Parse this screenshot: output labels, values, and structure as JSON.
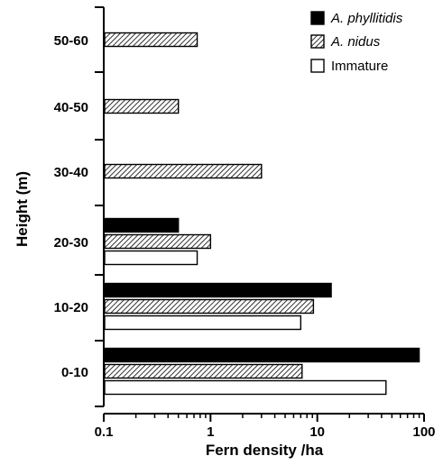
{
  "chart_data": {
    "type": "bar",
    "orientation": "horizontal",
    "title": "",
    "xlabel": "Fern density /ha",
    "ylabel": "Height (m)",
    "xscale": "log",
    "xlim": [
      0.1,
      100
    ],
    "x_tick_labels": [
      "0.1",
      "1",
      "10",
      "100"
    ],
    "categories": [
      "0-10",
      "10-20",
      "20-30",
      "30-40",
      "40-50",
      "50-60"
    ],
    "series": [
      {
        "name": "A. phyllitidis",
        "italic": true,
        "fill": "solid",
        "color": "#000000",
        "values": [
          90,
          13.5,
          0.5,
          null,
          null,
          null
        ]
      },
      {
        "name": "A. nidus",
        "italic": true,
        "fill": "hatch",
        "color": "#000000",
        "values": [
          7.2,
          9.2,
          1.0,
          3.0,
          0.5,
          0.75
        ]
      },
      {
        "name": "Immature",
        "italic": false,
        "fill": "white",
        "color": "#000000",
        "values": [
          44,
          7.0,
          0.75,
          null,
          null,
          null
        ]
      }
    ],
    "legend_position": "top-right",
    "grid": false
  }
}
